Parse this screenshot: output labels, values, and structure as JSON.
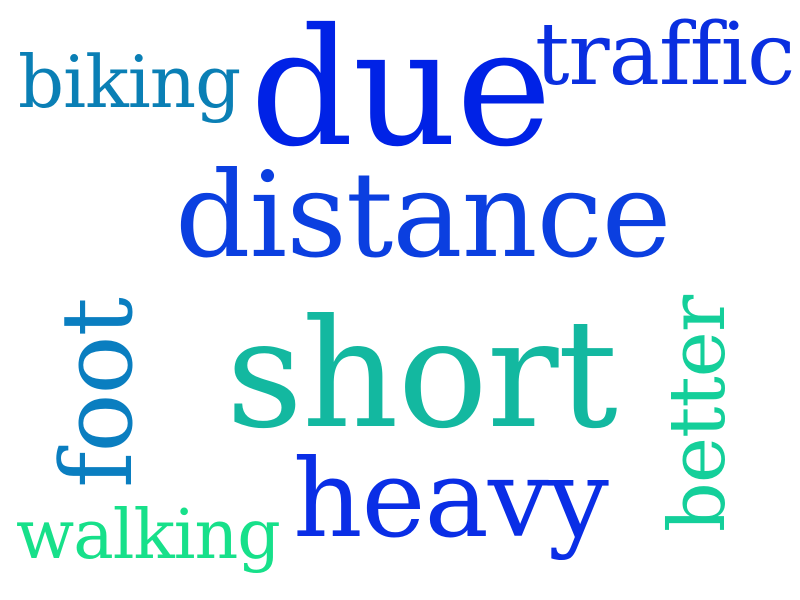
{
  "words": [
    {
      "text": "due",
      "color": "#0022e6"
    },
    {
      "text": "traffic",
      "color": "#0a2fe0"
    },
    {
      "text": "biking",
      "color": "#0a7fb5"
    },
    {
      "text": "distance",
      "color": "#0b3fe0"
    },
    {
      "text": "short",
      "color": "#13b8a0"
    },
    {
      "text": "heavy",
      "color": "#0a2ee6"
    },
    {
      "text": "walking",
      "color": "#17e08a"
    },
    {
      "text": "foot",
      "color": "#0a7ec0"
    },
    {
      "text": "better",
      "color": "#14cf9a"
    }
  ]
}
